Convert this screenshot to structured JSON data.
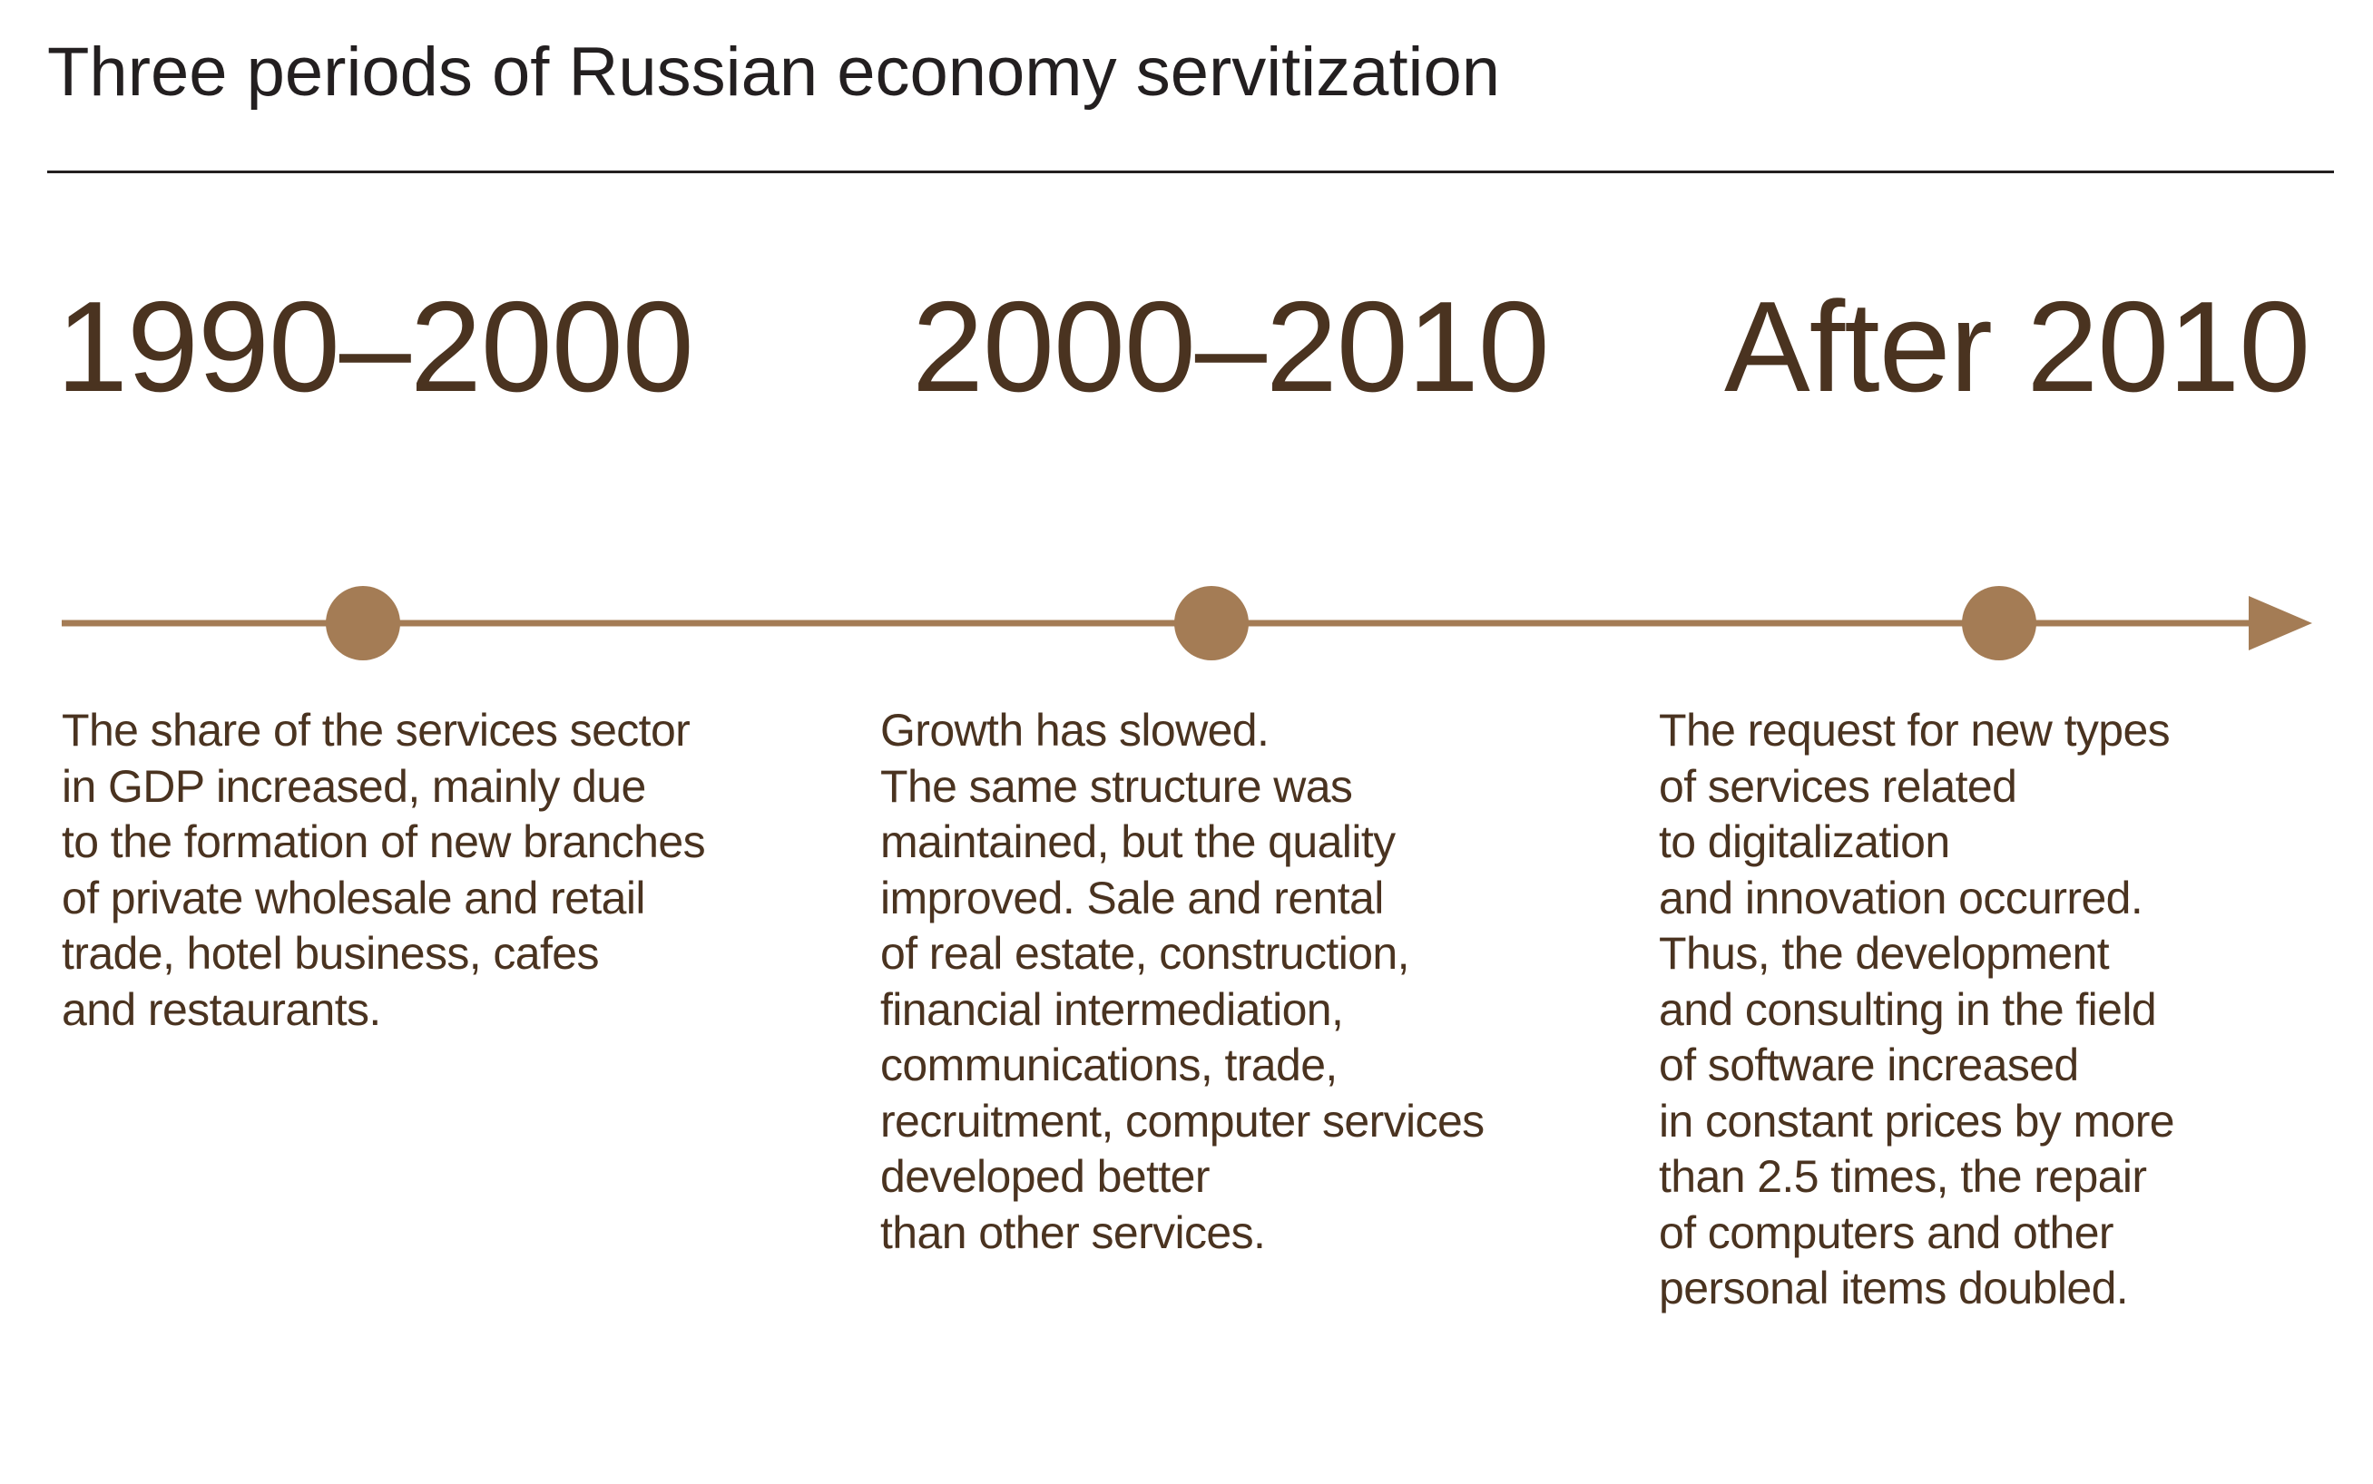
{
  "title": "Three periods of Russian economy servitization",
  "colors": {
    "text": "#4a3320",
    "timeline": "#a47c55",
    "rule": "#231f20"
  },
  "periods": [
    {
      "label": "1990–2000",
      "description": "The share of the services sector\nin GDP increased, mainly due\nto the formation of new branches\nof private wholesale and retail\ntrade, hotel business, cafes\nand restaurants."
    },
    {
      "label": "2000–2010",
      "description": "Growth has slowed.\nThe same structure was\nmaintained, but the quality\nimproved. Sale and rental\nof real estate, construction,\nfinancial intermediation,\ncommunications, trade,\nrecruitment, computer services\ndeveloped better\nthan other services."
    },
    {
      "label": "After 2010",
      "description": "The request for new types\nof services related\nto digitalization\nand innovation occurred.\nThus, the development\nand consulting in the field\nof software increased\nin constant prices by more\nthan 2.5 times, the repair\nof computers and other\npersonal items doubled."
    }
  ]
}
